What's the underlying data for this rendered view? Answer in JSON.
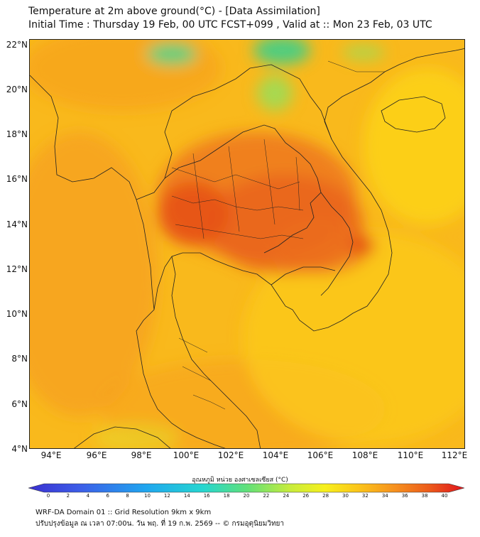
{
  "header": {
    "title_line1": "Temperature at 2m above ground(°C) - [Data Assimilation]",
    "title_line2": "Initial Time : Thursday 19 Feb, 00 UTC FCST+099 , Valid at :: Mon 23 Feb, 03 UTC"
  },
  "map": {
    "variable": "Temperature at 2m above ground",
    "lat_labels": [
      "22°N",
      "20°N",
      "18°N",
      "16°N",
      "14°N",
      "12°N",
      "10°N",
      "8°N",
      "6°N",
      "4°N"
    ],
    "lon_labels": [
      "94°E",
      "96°E",
      "98°E",
      "100°E",
      "102°E",
      "104°E",
      "106°E",
      "108°E",
      "110°E",
      "112°E"
    ],
    "colors": {
      "hot": "#e6501a",
      "warm": "#f6a11e",
      "mild": "#fbc31a",
      "cool": "#4fd48a",
      "border": "#222222"
    }
  },
  "colorbar": {
    "title": "อุณหภูมิ หน่วย องศาเซลเซียส (°C)",
    "ticks": [
      "0",
      "2",
      "4",
      "6",
      "8",
      "10",
      "12",
      "14",
      "16",
      "18",
      "20",
      "22",
      "24",
      "26",
      "28",
      "30",
      "32",
      "34",
      "36",
      "38",
      "40"
    ]
  },
  "footer": {
    "line1": "WRF-DA Domain 01 :: Grid Resolution 9km x 9km",
    "line2": "ปรับปรุงข้อมูล ณ เวลา 07:00น. วัน พฤ. ที่ 19 ก.พ. 2569 -- © กรมอุตุนิยมวิทยา"
  }
}
